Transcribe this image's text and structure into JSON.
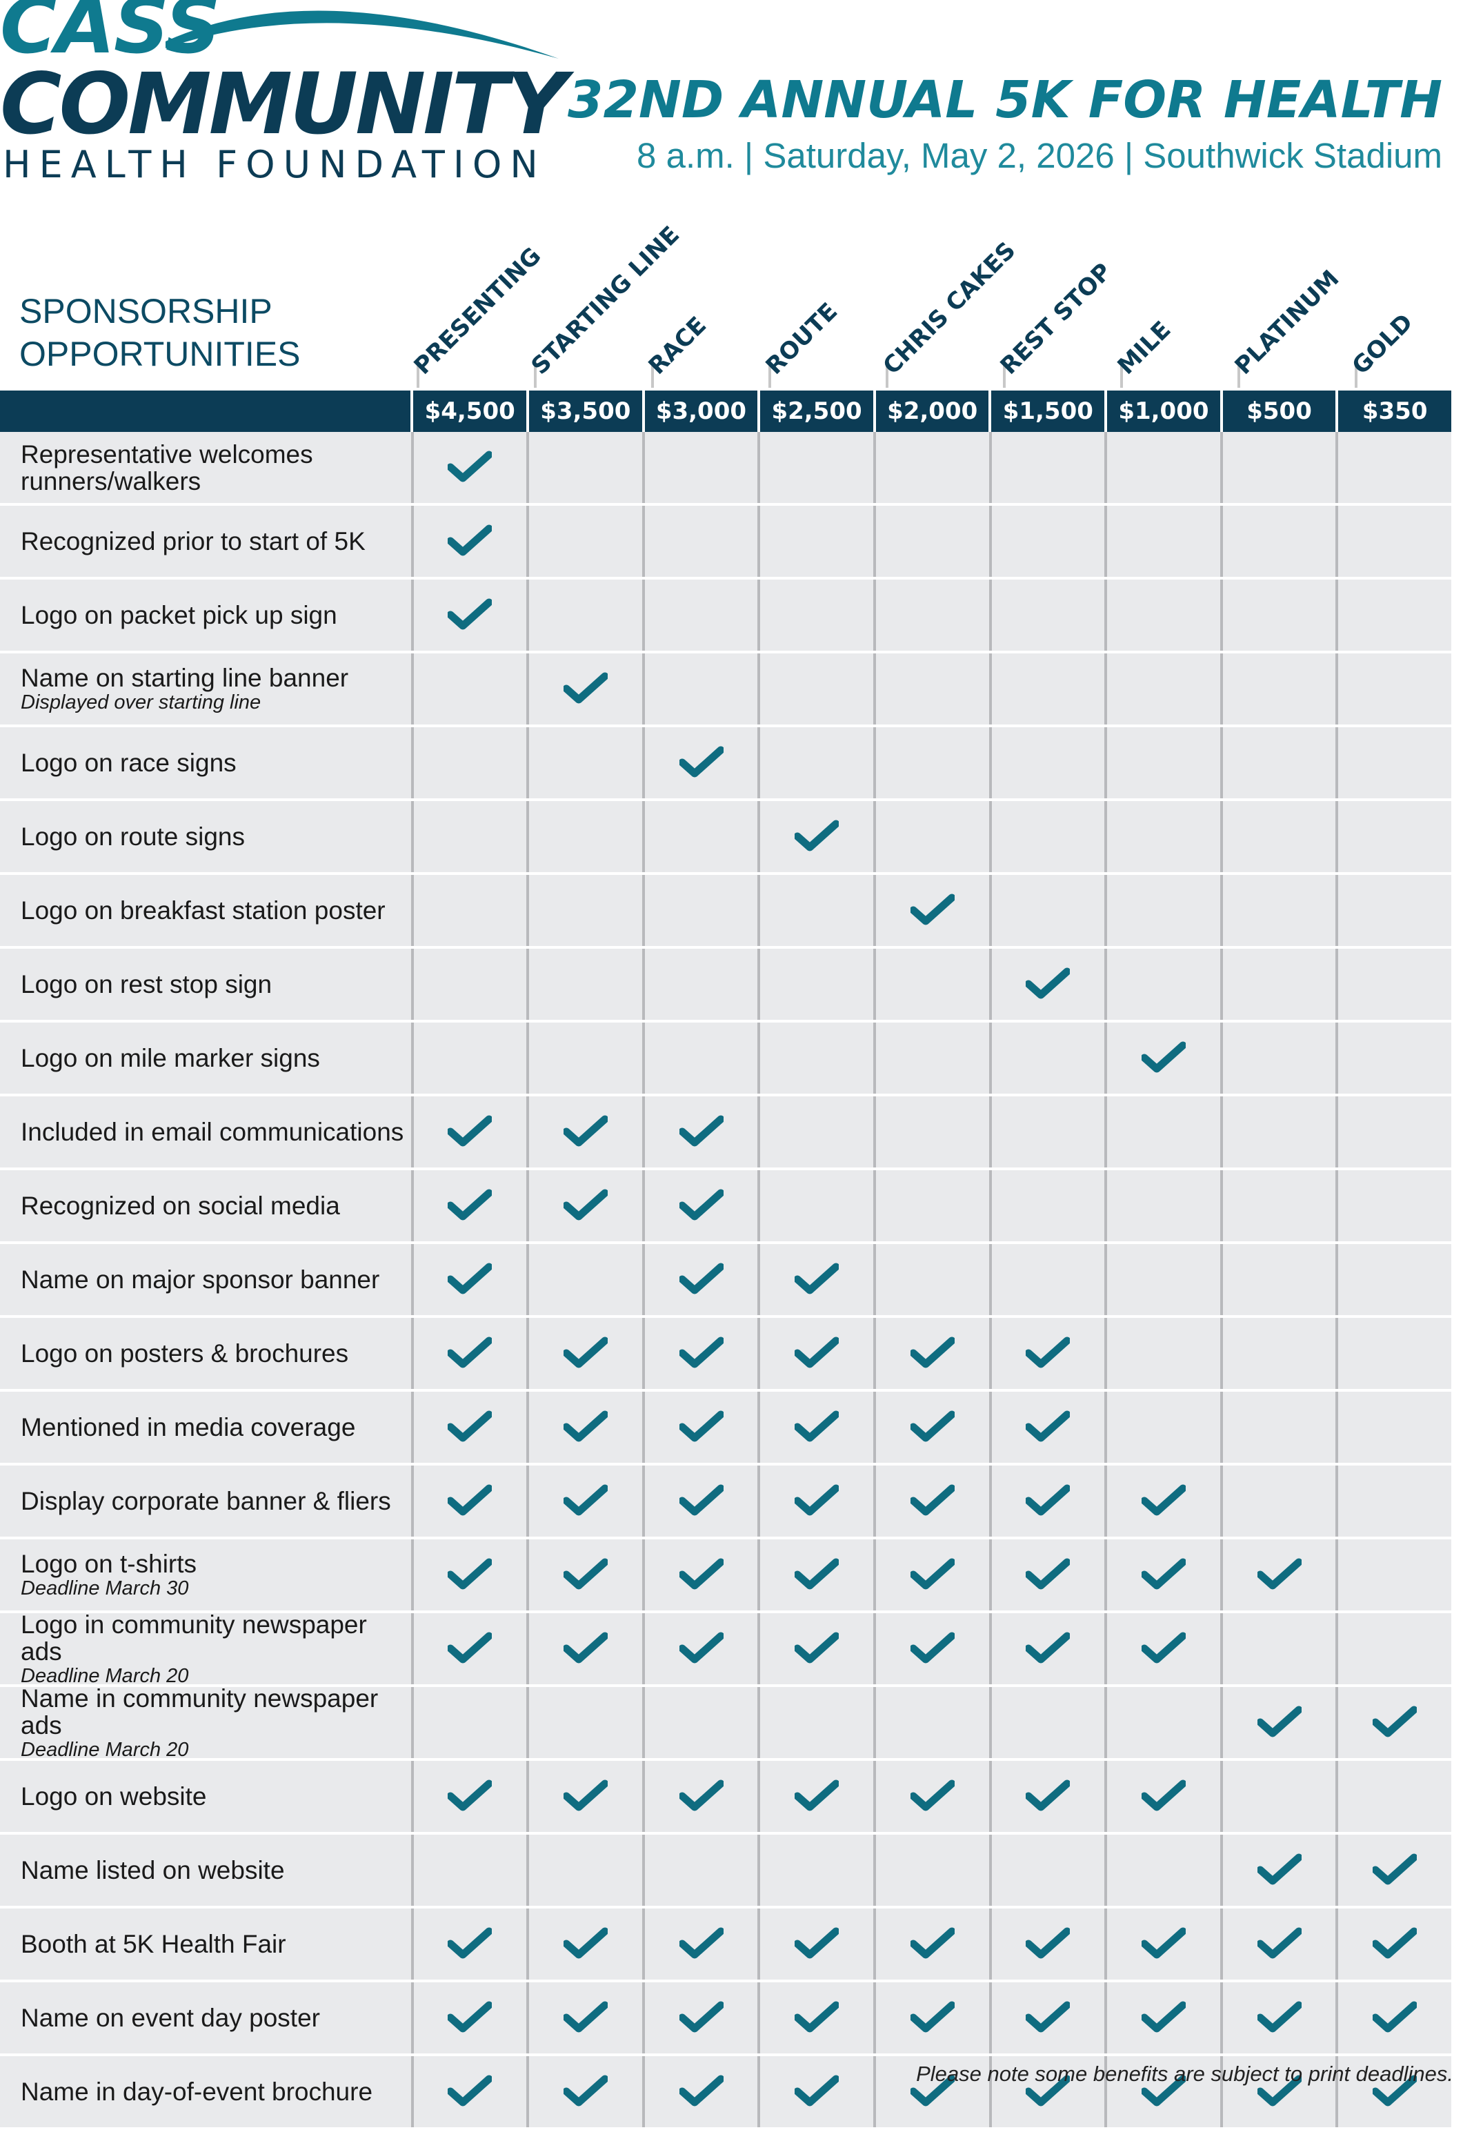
{
  "org": {
    "line1": "CASS",
    "line2": "COMMUNITY",
    "line3": "HEALTH FOUNDATION"
  },
  "event": {
    "title": "32ND ANNUAL 5K FOR HEALTH",
    "subtitle": "8 a.m. | Saturday, May 2, 2026 | Southwick Stadium"
  },
  "section_label_1": "SPONSORSHIP",
  "section_label_2": "OPPORTUNITIES",
  "colors": {
    "navy": "#0c3c55",
    "teal": "#0f7a8f",
    "row_bg": "#e9eaec"
  },
  "tiers": [
    {
      "name": "PRESENTING",
      "price": "$4,500"
    },
    {
      "name": "STARTING LINE",
      "price": "$3,500"
    },
    {
      "name": "RACE",
      "price": "$3,000"
    },
    {
      "name": "ROUTE",
      "price": "$2,500"
    },
    {
      "name": "CHRIS CAKES",
      "price": "$2,000"
    },
    {
      "name": "REST STOP",
      "price": "$1,500"
    },
    {
      "name": "MILE",
      "price": "$1,000"
    },
    {
      "name": "PLATINUM",
      "price": "$500"
    },
    {
      "name": "GOLD",
      "price": "$350"
    }
  ],
  "benefits": [
    {
      "label": "Representative welcomes runners/walkers",
      "note": "",
      "checks": [
        1,
        0,
        0,
        0,
        0,
        0,
        0,
        0,
        0
      ]
    },
    {
      "label": "Recognized prior to start of 5K",
      "note": "",
      "checks": [
        1,
        0,
        0,
        0,
        0,
        0,
        0,
        0,
        0
      ]
    },
    {
      "label": "Logo on packet pick up sign",
      "note": "",
      "checks": [
        1,
        0,
        0,
        0,
        0,
        0,
        0,
        0,
        0
      ]
    },
    {
      "label": "Name on starting line banner",
      "note": "Displayed over starting line",
      "checks": [
        0,
        1,
        0,
        0,
        0,
        0,
        0,
        0,
        0
      ]
    },
    {
      "label": "Logo on race signs",
      "note": "",
      "checks": [
        0,
        0,
        1,
        0,
        0,
        0,
        0,
        0,
        0
      ]
    },
    {
      "label": "Logo on route signs",
      "note": "",
      "checks": [
        0,
        0,
        0,
        1,
        0,
        0,
        0,
        0,
        0
      ]
    },
    {
      "label": "Logo on breakfast station poster",
      "note": "",
      "checks": [
        0,
        0,
        0,
        0,
        1,
        0,
        0,
        0,
        0
      ]
    },
    {
      "label": "Logo on rest stop sign",
      "note": "",
      "checks": [
        0,
        0,
        0,
        0,
        0,
        1,
        0,
        0,
        0
      ]
    },
    {
      "label": "Logo on mile marker signs",
      "note": "",
      "checks": [
        0,
        0,
        0,
        0,
        0,
        0,
        1,
        0,
        0
      ]
    },
    {
      "label": "Included in email communications",
      "note": "",
      "checks": [
        1,
        1,
        1,
        0,
        0,
        0,
        0,
        0,
        0
      ]
    },
    {
      "label": "Recognized on social media",
      "note": "",
      "checks": [
        1,
        1,
        1,
        0,
        0,
        0,
        0,
        0,
        0
      ]
    },
    {
      "label": "Name on major sponsor banner",
      "note": "",
      "checks": [
        1,
        0,
        1,
        1,
        0,
        0,
        0,
        0,
        0
      ]
    },
    {
      "label": "Logo on posters & brochures",
      "note": "",
      "checks": [
        1,
        1,
        1,
        1,
        1,
        1,
        0,
        0,
        0
      ]
    },
    {
      "label": "Mentioned in media coverage",
      "note": "",
      "checks": [
        1,
        1,
        1,
        1,
        1,
        1,
        0,
        0,
        0
      ]
    },
    {
      "label": "Display corporate banner & fliers",
      "note": "",
      "checks": [
        1,
        1,
        1,
        1,
        1,
        1,
        1,
        0,
        0
      ]
    },
    {
      "label": "Logo on t-shirts",
      "note": "Deadline March 30",
      "checks": [
        1,
        1,
        1,
        1,
        1,
        1,
        1,
        1,
        0
      ]
    },
    {
      "label": "Logo in community newspaper ads",
      "note": "Deadline March 20",
      "checks": [
        1,
        1,
        1,
        1,
        1,
        1,
        1,
        0,
        0
      ]
    },
    {
      "label": "Name in community newspaper ads",
      "note": "Deadline March 20",
      "checks": [
        0,
        0,
        0,
        0,
        0,
        0,
        0,
        1,
        1
      ]
    },
    {
      "label": "Logo on website",
      "note": "",
      "checks": [
        1,
        1,
        1,
        1,
        1,
        1,
        1,
        0,
        0
      ]
    },
    {
      "label": "Name listed on website",
      "note": "",
      "checks": [
        0,
        0,
        0,
        0,
        0,
        0,
        0,
        1,
        1
      ]
    },
    {
      "label": "Booth at 5K Health Fair",
      "note": "",
      "checks": [
        1,
        1,
        1,
        1,
        1,
        1,
        1,
        1,
        1
      ]
    },
    {
      "label": "Name on event day poster",
      "note": "",
      "checks": [
        1,
        1,
        1,
        1,
        1,
        1,
        1,
        1,
        1
      ]
    },
    {
      "label": "Name in day-of-event brochure",
      "note": "",
      "checks": [
        1,
        1,
        1,
        1,
        1,
        1,
        1,
        1,
        1
      ]
    }
  ],
  "footnote": "Please note some benefits are subject to print deadlines."
}
